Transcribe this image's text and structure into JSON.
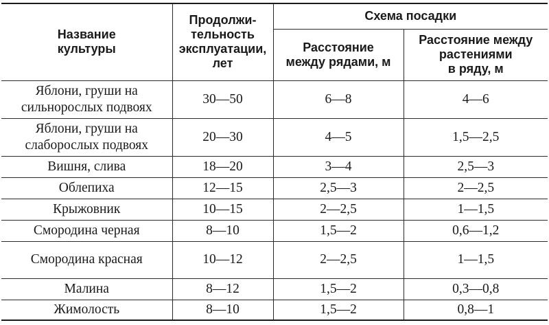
{
  "header": {
    "name_col": "Название\nкультуры",
    "duration_col": "Продолжи-\nтельность\nэксплуатации,\nлет",
    "scheme_group": "Схема посадки",
    "row_spacing_col": "Расстояние\nмежду рядами, м",
    "plant_spacing_col": "Расстояние между\nрастениями\nв ряду, м"
  },
  "rows": [
    {
      "name": "Яблони, груши на\nсильнорослых подвоях",
      "duration": "30—50",
      "row_spacing": "6—8",
      "plant_spacing": "4—6"
    },
    {
      "name": "Яблони, груши на\nслаборослых подвоях",
      "duration": "20—30",
      "row_spacing": "4—5",
      "plant_spacing": "1,5—2,5"
    },
    {
      "name": "Вишня, слива",
      "duration": "18—20",
      "row_spacing": "3—4",
      "plant_spacing": "2,5—3"
    },
    {
      "name": "Облепиха",
      "duration": "12—15",
      "row_spacing": "2,5—3",
      "plant_spacing": "2—2,5"
    },
    {
      "name": "Крыжовник",
      "duration": "10—15",
      "row_spacing": "2—2,5",
      "plant_spacing": "1—1,5"
    },
    {
      "name": "Смородина черная",
      "duration": "8—10",
      "row_spacing": "1,5—2",
      "plant_spacing": "0,6—1,2"
    },
    {
      "name": "Смородина красная",
      "duration": "10—12",
      "row_spacing": "2—2,5",
      "plant_spacing": "1—1,5"
    },
    {
      "name": "Малина",
      "duration": "8—12",
      "row_spacing": "1,5—2",
      "plant_spacing": "0,3—0,8"
    },
    {
      "name": "Жимолость",
      "duration": "8—10",
      "row_spacing": "1,5—2",
      "plant_spacing": "0,8—1"
    }
  ]
}
